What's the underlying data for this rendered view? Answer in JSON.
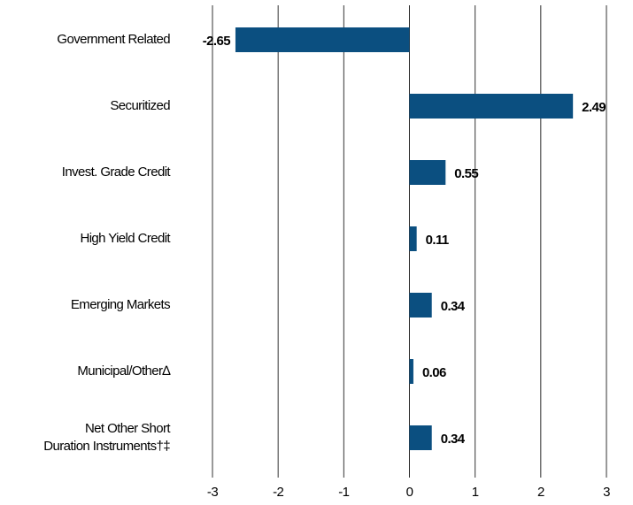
{
  "chart_data": {
    "type": "bar",
    "orientation": "horizontal",
    "categories": [
      "Government Related",
      "Securitized",
      "Invest. Grade Credit",
      "High Yield Credit",
      "Emerging Markets",
      "Municipal/Other∆",
      "Net Other Short\nDuration Instruments†‡"
    ],
    "values": [
      -2.65,
      2.49,
      0.55,
      0.11,
      0.34,
      0.06,
      0.34
    ],
    "color": "#0b4f80",
    "xlim": [
      -3,
      3
    ],
    "xticks": [
      -3,
      -2,
      -1,
      0,
      1,
      2,
      3
    ],
    "grid": true
  }
}
